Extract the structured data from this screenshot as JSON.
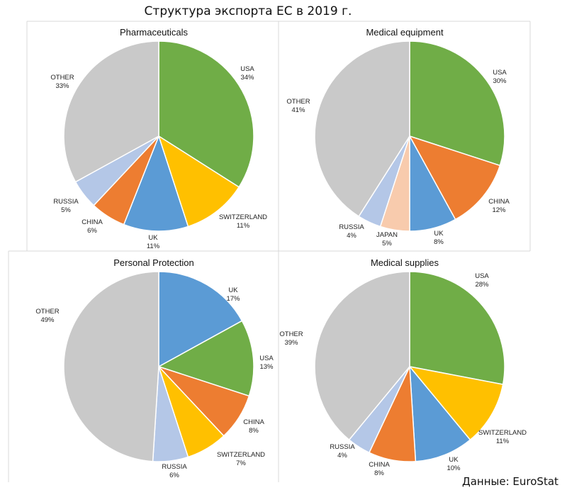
{
  "header": {
    "title": "Структура экспорта ЕС в 2019 г."
  },
  "footer": {
    "source": "Данные: EuroStat"
  },
  "colors": {
    "USA": "#70ad47",
    "SWITZERLAND": "#ffc000",
    "UK": "#5b9bd5",
    "CHINA": "#ed7d31",
    "RUSSIA": "#b4c7e7",
    "JAPAN": "#f8cbad",
    "OTHER": "#c9c9c9"
  },
  "chart_data": [
    {
      "type": "pie",
      "title": "Pharmaceuticals",
      "slices": [
        {
          "label": "USA",
          "value": 34,
          "value_label": "34%"
        },
        {
          "label": "SWITZERLAND",
          "value": 11,
          "value_label": "11%"
        },
        {
          "label": "UK",
          "value": 11,
          "value_label": "11%"
        },
        {
          "label": "CHINA",
          "value": 6,
          "value_label": "6%"
        },
        {
          "label": "RUSSIA",
          "value": 5,
          "value_label": "5%"
        },
        {
          "label": "OTHER",
          "value": 33,
          "value_label": "33%"
        }
      ]
    },
    {
      "type": "pie",
      "title": "Medical equipment",
      "slices": [
        {
          "label": "USA",
          "value": 30,
          "value_label": "30%"
        },
        {
          "label": "CHINA",
          "value": 12,
          "value_label": "12%"
        },
        {
          "label": "UK",
          "value": 8,
          "value_label": "8%"
        },
        {
          "label": "JAPAN",
          "value": 5,
          "value_label": "5%"
        },
        {
          "label": "RUSSIA",
          "value": 4,
          "value_label": "4%"
        },
        {
          "label": "OTHER",
          "value": 41,
          "value_label": "41%"
        }
      ]
    },
    {
      "type": "pie",
      "title": "Personal Protection",
      "slices": [
        {
          "label": "UK",
          "value": 17,
          "value_label": "17%"
        },
        {
          "label": "USA",
          "value": 13,
          "value_label": "13%"
        },
        {
          "label": "CHINA",
          "value": 8,
          "value_label": "8%"
        },
        {
          "label": "SWITZERLAND",
          "value": 7,
          "value_label": "7%"
        },
        {
          "label": "RUSSIA",
          "value": 6,
          "value_label": "6%"
        },
        {
          "label": "OTHER",
          "value": 49,
          "value_label": "49%"
        }
      ]
    },
    {
      "type": "pie",
      "title": "Medical supplies",
      "slices": [
        {
          "label": "USA",
          "value": 28,
          "value_label": "28%"
        },
        {
          "label": "SWITZERLAND",
          "value": 11,
          "value_label": "11%"
        },
        {
          "label": "UK",
          "value": 10,
          "value_label": "10%"
        },
        {
          "label": "CHINA",
          "value": 8,
          "value_label": "8%"
        },
        {
          "label": "RUSSIA",
          "value": 4,
          "value_label": "4%"
        },
        {
          "label": "OTHER",
          "value": 39,
          "value_label": "39%"
        }
      ]
    }
  ]
}
